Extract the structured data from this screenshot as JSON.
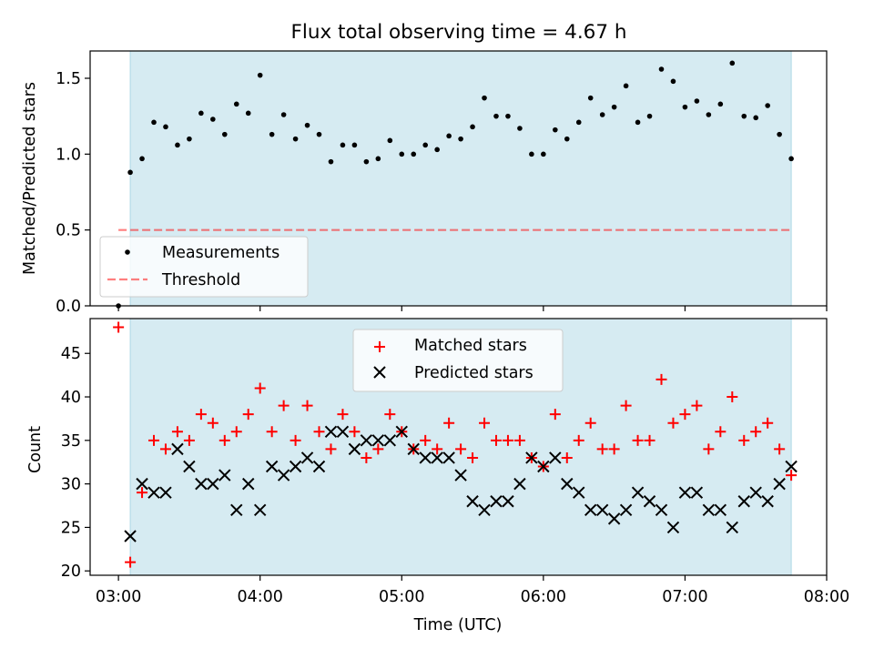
{
  "title": "Flux total observing time = 4.67 h",
  "colors": {
    "span_fill": "#add8e6",
    "measurement": "#000000",
    "threshold": "#ff0000",
    "matched": "#ff0000",
    "predicted": "#000000"
  },
  "chart_data": [
    {
      "type": "scatter",
      "ylabel": "Matched/Predicted stars",
      "ylim": [
        0,
        1.68
      ],
      "yticks": [
        0.0,
        0.5,
        1.0,
        1.5
      ],
      "ytick_labels": [
        "0.0",
        "0.5",
        "1.0",
        "1.5"
      ],
      "xlim": [
        "02:48",
        "08:00"
      ],
      "shaded_span": [
        "03:05",
        "07:45"
      ],
      "threshold": 0.5,
      "threshold_span": [
        "03:00",
        "07:45"
      ],
      "legend": {
        "placement": "lower-left",
        "entries": [
          "Measurements",
          "Threshold"
        ]
      },
      "series": [
        {
          "name": "Measurements",
          "marker": "dot",
          "x": [
            "03:00",
            "03:05",
            "03:10",
            "03:15",
            "03:20",
            "03:25",
            "03:30",
            "03:35",
            "03:40",
            "03:45",
            "03:50",
            "03:55",
            "04:00",
            "04:05",
            "04:10",
            "04:15",
            "04:20",
            "04:25",
            "04:30",
            "04:35",
            "04:40",
            "04:45",
            "04:50",
            "04:55",
            "05:00",
            "05:05",
            "05:10",
            "05:15",
            "05:20",
            "05:25",
            "05:30",
            "05:35",
            "05:40",
            "05:45",
            "05:50",
            "05:55",
            "06:00",
            "06:05",
            "06:10",
            "06:15",
            "06:20",
            "06:25",
            "06:30",
            "06:35",
            "06:40",
            "06:45",
            "06:50",
            "06:55",
            "07:00",
            "07:05",
            "07:10",
            "07:15",
            "07:20",
            "07:25",
            "07:30",
            "07:35",
            "07:40",
            "07:45"
          ],
          "y": [
            0.0,
            0.88,
            0.97,
            1.21,
            1.18,
            1.06,
            1.1,
            1.27,
            1.23,
            1.13,
            1.33,
            1.27,
            1.52,
            1.13,
            1.26,
            1.1,
            1.19,
            1.13,
            0.95,
            1.06,
            1.06,
            0.95,
            0.97,
            1.09,
            1.0,
            1.0,
            1.06,
            1.03,
            1.12,
            1.1,
            1.18,
            1.37,
            1.25,
            1.25,
            1.17,
            1.0,
            1.0,
            1.16,
            1.1,
            1.21,
            1.37,
            1.26,
            1.31,
            1.45,
            1.21,
            1.25,
            1.56,
            1.48,
            1.31,
            1.35,
            1.26,
            1.33,
            1.6,
            1.25,
            1.24,
            1.32,
            1.13,
            0.97
          ]
        }
      ]
    },
    {
      "type": "scatter",
      "ylabel": "Count",
      "xlabel": "Time (UTC)",
      "ylim": [
        19.5,
        49
      ],
      "yticks": [
        20,
        25,
        30,
        35,
        40,
        45
      ],
      "ytick_labels": [
        "20",
        "25",
        "30",
        "35",
        "40",
        "45"
      ],
      "xlim": [
        "02:48",
        "08:00"
      ],
      "xticks": [
        "03:00",
        "04:00",
        "05:00",
        "06:00",
        "07:00",
        "08:00"
      ],
      "xtick_labels": [
        "03:00",
        "04:00",
        "05:00",
        "06:00",
        "07:00",
        "08:00"
      ],
      "shaded_span": [
        "03:05",
        "07:45"
      ],
      "legend": {
        "placement": "upper-center",
        "entries": [
          "Matched stars",
          "Predicted stars"
        ]
      },
      "series": [
        {
          "name": "Matched stars",
          "marker": "plus",
          "x": [
            "03:00",
            "03:05",
            "03:10",
            "03:15",
            "03:20",
            "03:25",
            "03:30",
            "03:35",
            "03:40",
            "03:45",
            "03:50",
            "03:55",
            "04:00",
            "04:05",
            "04:10",
            "04:15",
            "04:20",
            "04:25",
            "04:30",
            "04:35",
            "04:40",
            "04:45",
            "04:50",
            "04:55",
            "05:00",
            "05:05",
            "05:10",
            "05:15",
            "05:20",
            "05:25",
            "05:30",
            "05:35",
            "05:40",
            "05:45",
            "05:50",
            "05:55",
            "06:00",
            "06:05",
            "06:10",
            "06:15",
            "06:20",
            "06:25",
            "06:30",
            "06:35",
            "06:40",
            "06:45",
            "06:50",
            "06:55",
            "07:00",
            "07:05",
            "07:10",
            "07:15",
            "07:20",
            "07:25",
            "07:30",
            "07:35",
            "07:40",
            "07:45"
          ],
          "y": [
            48,
            21,
            29,
            35,
            34,
            36,
            35,
            38,
            37,
            35,
            36,
            38,
            41,
            36,
            39,
            35,
            39,
            36,
            34,
            38,
            36,
            33,
            34,
            38,
            36,
            34,
            35,
            34,
            37,
            34,
            33,
            37,
            35,
            35,
            35,
            33,
            32,
            38,
            33,
            35,
            37,
            34,
            34,
            39,
            35,
            35,
            42,
            37,
            38,
            39,
            34,
            36,
            40,
            35,
            36,
            37,
            34,
            31
          ]
        },
        {
          "name": "Predicted stars",
          "marker": "x",
          "x": [
            "03:05",
            "03:10",
            "03:15",
            "03:20",
            "03:25",
            "03:30",
            "03:35",
            "03:40",
            "03:45",
            "03:50",
            "03:55",
            "04:00",
            "04:05",
            "04:10",
            "04:15",
            "04:20",
            "04:25",
            "04:30",
            "04:35",
            "04:40",
            "04:45",
            "04:50",
            "04:55",
            "05:00",
            "05:05",
            "05:10",
            "05:15",
            "05:20",
            "05:25",
            "05:30",
            "05:35",
            "05:40",
            "05:45",
            "05:50",
            "05:55",
            "06:00",
            "06:05",
            "06:10",
            "06:15",
            "06:20",
            "06:25",
            "06:30",
            "06:35",
            "06:40",
            "06:45",
            "06:50",
            "06:55",
            "07:00",
            "07:05",
            "07:10",
            "07:15",
            "07:20",
            "07:25",
            "07:30",
            "07:35",
            "07:40",
            "07:45"
          ],
          "y": [
            24,
            30,
            29,
            29,
            34,
            32,
            30,
            30,
            31,
            27,
            30,
            27,
            32,
            31,
            32,
            33,
            32,
            36,
            36,
            34,
            35,
            35,
            35,
            36,
            34,
            33,
            33,
            33,
            31,
            28,
            27,
            28,
            28,
            30,
            33,
            32,
            33,
            30,
            29,
            27,
            27,
            26,
            27,
            29,
            28,
            27,
            25,
            29,
            29,
            27,
            27,
            25,
            28,
            29,
            28,
            30,
            32
          ]
        }
      ]
    }
  ]
}
